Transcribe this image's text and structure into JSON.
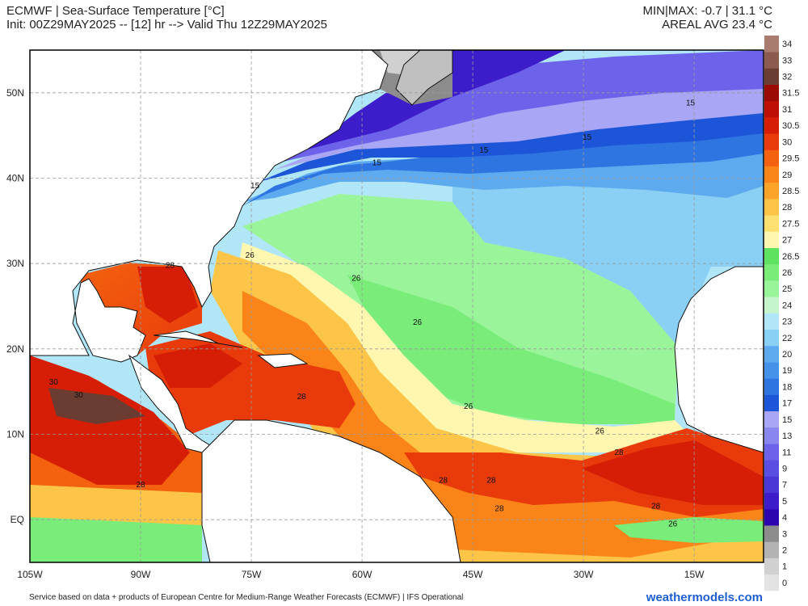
{
  "header": {
    "title": "ECMWF | Sea-Surface Temperature [°C]",
    "init_line": "Init: 00Z29MAY2025 -- [12] hr --> Valid Thu 12Z29MAY2025",
    "minmax": "MIN|MAX: -0.7 | 31.1 °C",
    "areal_avg": "AREAL AVG 23.4 °C"
  },
  "map": {
    "lon_labels": [
      "105W",
      "90W",
      "75W",
      "60W",
      "45W",
      "30W",
      "15W"
    ],
    "lat_labels": [
      "50N",
      "40N",
      "30N",
      "20N",
      "10N",
      "EQ"
    ],
    "contour_labels": [
      {
        "text": "15",
        "lon": -15.5,
        "lat": 48.5
      },
      {
        "text": "15",
        "lon": -29.5,
        "lat": 44.5
      },
      {
        "text": "15",
        "lon": -43.5,
        "lat": 43.0
      },
      {
        "text": "15",
        "lon": -58.0,
        "lat": 41.5
      },
      {
        "text": "15",
        "lon": -74.5,
        "lat": 38.8
      },
      {
        "text": "26",
        "lon": -75.2,
        "lat": 30.7
      },
      {
        "text": "26",
        "lon": -60.8,
        "lat": 28.0
      },
      {
        "text": "26",
        "lon": -52.5,
        "lat": 22.8
      },
      {
        "text": "26",
        "lon": -45.6,
        "lat": 13.0
      },
      {
        "text": "26",
        "lon": -27.8,
        "lat": 10.1
      },
      {
        "text": "26",
        "lon": -17.9,
        "lat": -0.8
      },
      {
        "text": "28",
        "lon": -86.0,
        "lat": 29.5
      },
      {
        "text": "28",
        "lon": -68.2,
        "lat": 14.1
      },
      {
        "text": "28",
        "lon": -90.0,
        "lat": 3.8
      },
      {
        "text": "28",
        "lon": -49.0,
        "lat": 4.3
      },
      {
        "text": "28",
        "lon": -42.5,
        "lat": 4.3
      },
      {
        "text": "28",
        "lon": -41.4,
        "lat": 1.0
      },
      {
        "text": "28",
        "lon": -25.2,
        "lat": 7.6
      },
      {
        "text": "28",
        "lon": -20.2,
        "lat": 1.3
      },
      {
        "text": "30",
        "lon": -101.8,
        "lat": 15.8
      },
      {
        "text": "30",
        "lon": -98.4,
        "lat": 14.3
      }
    ]
  },
  "colorbar": {
    "levels": [
      "0",
      "1",
      "2",
      "3",
      "4",
      "5",
      "7",
      "9",
      "11",
      "13",
      "15",
      "17",
      "18",
      "19",
      "20",
      "22",
      "23",
      "24",
      "25",
      "26",
      "26.5",
      "27",
      "27.5",
      "28",
      "28.5",
      "29",
      "29.5",
      "30",
      "30.5",
      "31",
      "31.5",
      "32",
      "33",
      "34"
    ],
    "colors": [
      "#e3e3e3",
      "#d0d0d0",
      "#b3b3b3",
      "#8c8c8c",
      "#2c05b0",
      "#3d1dca",
      "#4a37d6",
      "#5a4de1",
      "#6d63ea",
      "#8a86f0",
      "#a9a6f5",
      "#1d55d9",
      "#2e75e2",
      "#4592ea",
      "#5daaef",
      "#8ad0f4",
      "#b0e6f8",
      "#c6f4cd",
      "#9af49a",
      "#7aec7a",
      "#5fe25f",
      "#fff7b0",
      "#fde070",
      "#fdc548",
      "#fca32a",
      "#fb8418",
      "#f4620f",
      "#e83a0a",
      "#d61e06",
      "#bf0f05",
      "#9c0a04",
      "#6b3d32",
      "#8c5a4e",
      "#a97a6e",
      "#c69b90",
      "#ddbfb6"
    ]
  },
  "footer": {
    "credit": "Service based on data + products of European Centre for Medium-Range Weather Forecasts (ECMWF) | IFS Operational",
    "brand": "weathermodels.com"
  }
}
